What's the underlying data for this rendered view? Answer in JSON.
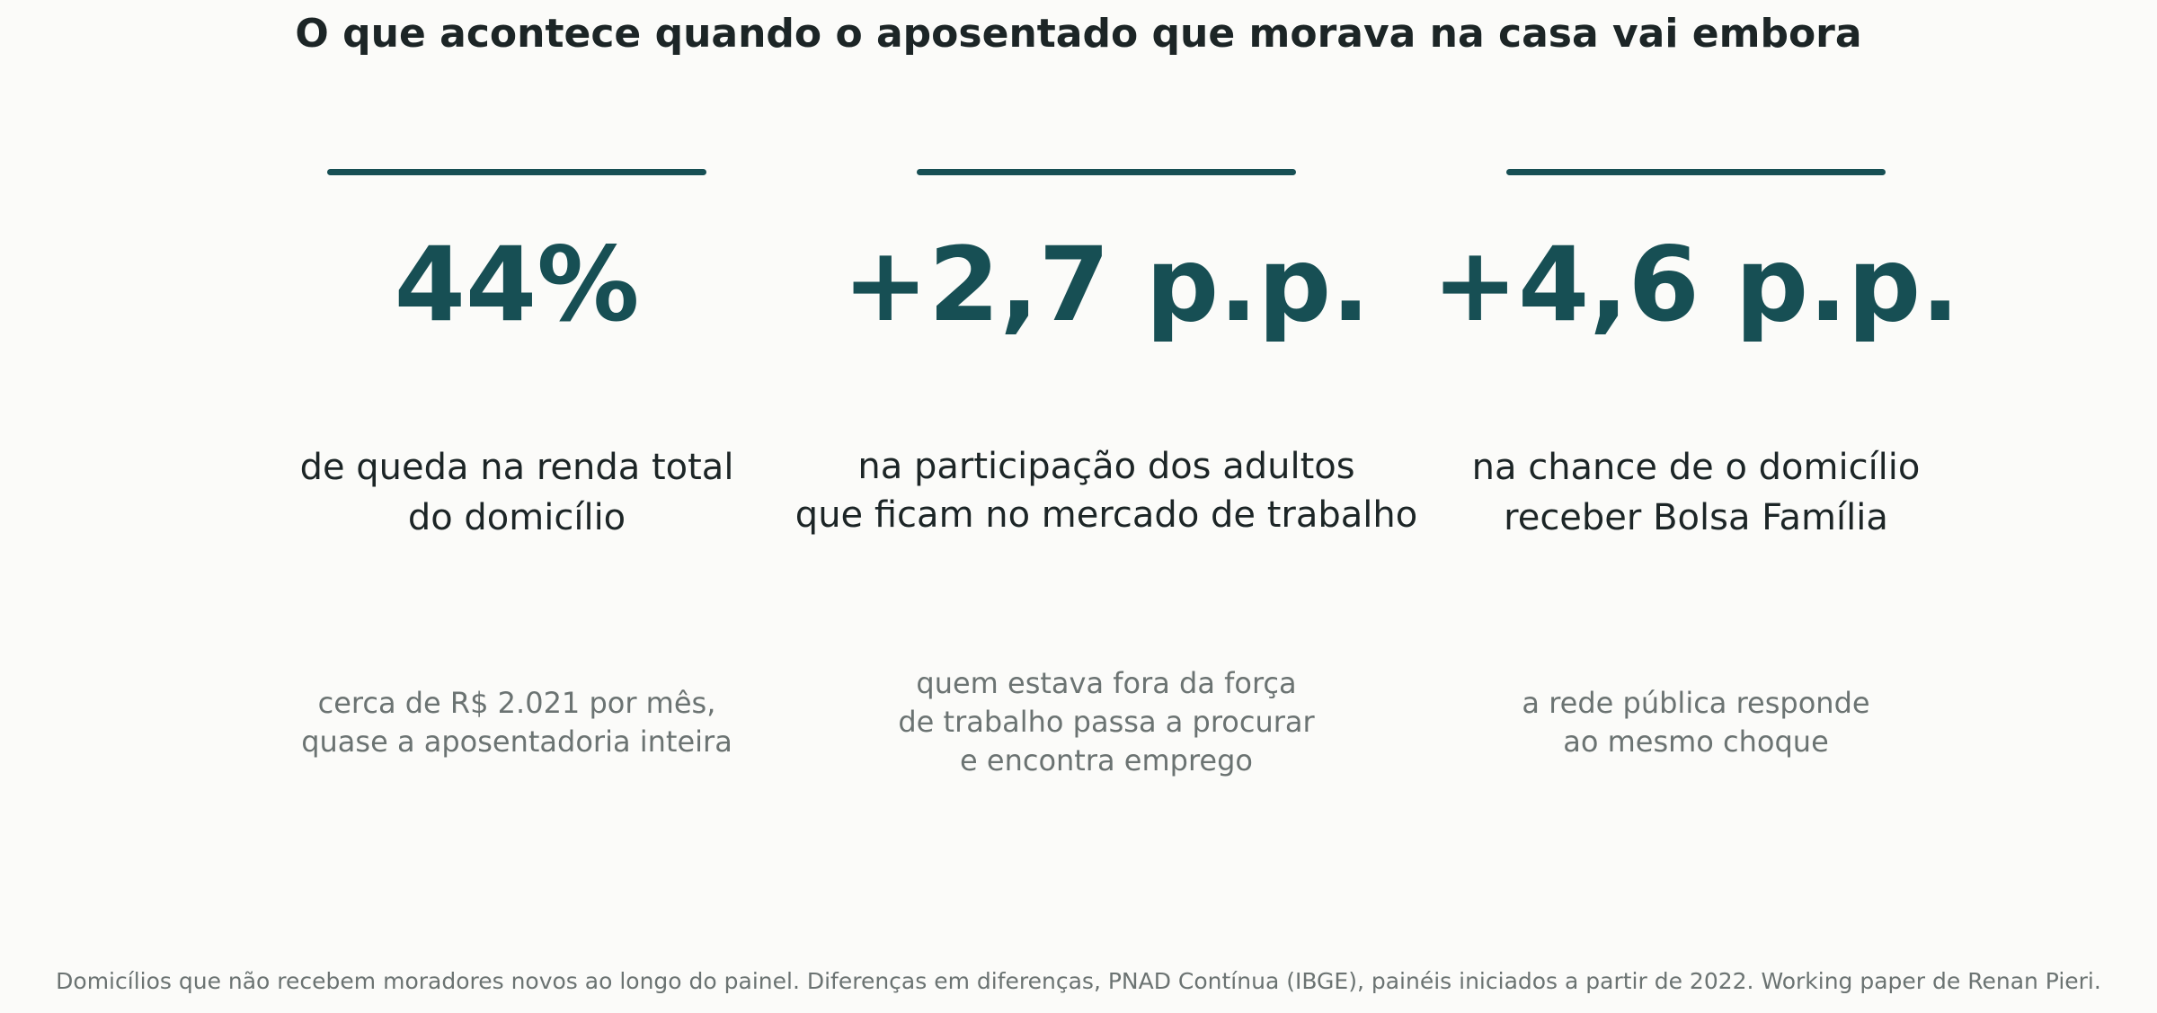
{
  "title": "O que acontece quando o aposentado que morava na casa vai embora",
  "accent_color": "#174f54",
  "cards": [
    {
      "value": "44%",
      "desc": [
        "de queda na renda total",
        "do domicílio"
      ],
      "note": [
        "cerca de R$ 2.021 por mês,",
        "quase a aposentadoria inteira"
      ]
    },
    {
      "value": "+2,7 p.p.",
      "desc": [
        "na participação dos adultos",
        "que ficam no mercado de trabalho"
      ],
      "note": [
        "quem estava fora da força",
        "de trabalho passa a procurar",
        "e encontra emprego"
      ]
    },
    {
      "value": "+4,6 p.p.",
      "desc": [
        "na chance de o domicílio",
        "receber Bolsa Família"
      ],
      "note": [
        "a rede pública responde",
        "ao mesmo choque"
      ]
    }
  ],
  "footer": "Domicílios que não recebem moradores novos ao longo do painel. Diferenças em diferenças, PNAD Contínua (IBGE), painéis iniciados a partir de 2022. Working paper de Renan Pieri."
}
